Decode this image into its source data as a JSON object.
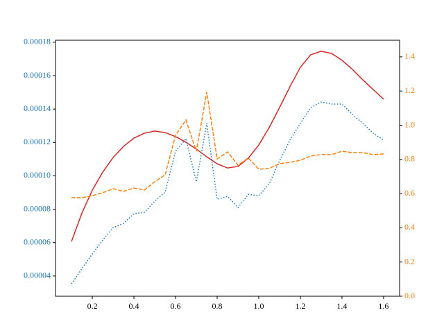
{
  "chart_data": {
    "type": "line",
    "x": [
      0.1,
      0.15,
      0.2,
      0.25,
      0.3,
      0.35,
      0.4,
      0.45,
      0.5,
      0.55,
      0.6,
      0.65,
      0.7,
      0.75,
      0.8,
      0.85,
      0.9,
      0.95,
      1.0,
      1.05,
      1.1,
      1.15,
      1.2,
      1.25,
      1.3,
      1.35,
      1.4,
      1.45,
      1.5,
      1.55,
      1.6
    ],
    "series": [
      {
        "color": "#d62728",
        "linestyle": "solid",
        "axis": "y",
        "values": [
          6.07e-05,
          7.77e-05,
          9.14e-05,
          0.0001022,
          0.000111,
          0.0001176,
          0.0001226,
          0.0001255,
          0.0001268,
          0.0001259,
          0.0001235,
          0.0001201,
          0.000116,
          0.0001114,
          0.0001072,
          0.0001047,
          0.0001056,
          0.0001106,
          0.0001185,
          0.0001289,
          0.0001409,
          0.0001534,
          0.000165,
          0.0001725,
          0.0001746,
          0.0001733,
          0.0001692,
          0.0001638,
          0.0001575,
          0.0001517,
          0.0001459
        ]
      },
      {
        "color": "#1f77b4",
        "linestyle": "dotted",
        "axis": "y",
        "values": [
          3.53e-05,
          4.44e-05,
          5.32e-05,
          6.15e-05,
          6.9e-05,
          7.15e-05,
          7.73e-05,
          7.81e-05,
          8.48e-05,
          9.02e-05,
          0.0001147,
          0.0001222,
          9.64e-05,
          0.0001314,
          8.6e-05,
          8.77e-05,
          8.1e-05,
          8.89e-05,
          8.81e-05,
          9.52e-05,
          0.0001089,
          0.0001214,
          0.0001314,
          0.0001409,
          0.0001442,
          0.000143,
          0.000143,
          0.0001368,
          0.0001314,
          0.0001255,
          0.0001214
        ]
      },
      {
        "color": "#ff7f0e",
        "linestyle": "dashed",
        "axis": "y2",
        "values": [
          0.576,
          0.576,
          0.588,
          0.605,
          0.629,
          0.613,
          0.633,
          0.621,
          0.67,
          0.71,
          0.941,
          1.031,
          0.848,
          1.193,
          0.803,
          0.844,
          0.767,
          0.808,
          0.743,
          0.747,
          0.775,
          0.783,
          0.795,
          0.82,
          0.828,
          0.828,
          0.848,
          0.84,
          0.84,
          0.828,
          0.832
        ]
      }
    ],
    "xlim": [
      0.023,
      1.677
    ],
    "xticks": [
      0.2,
      0.4,
      0.6,
      0.8,
      {
        "value": 1.0,
        "label": "1.0"
      },
      1.2,
      1.4,
      1.6
    ],
    "ylim": [
      2.79e-05,
      0.0001812
    ],
    "yticks": [
      4e-05,
      6e-05,
      8e-05,
      {
        "value": 0.0001,
        "label": "0.00010"
      },
      0.00012,
      0.00014,
      0.00016,
      0.00018
    ],
    "ytick_color": "#1f77b4",
    "y2lim": [
      0,
      1.497
    ],
    "y2ticks": [
      {
        "value": 0,
        "label": "0.0"
      },
      0.2,
      0.4,
      0.6,
      0.8,
      {
        "value": 1.0,
        "label": "1.0"
      },
      1.2,
      1.4
    ],
    "y2tick_color": "#ff7f0e",
    "grid": false
  }
}
